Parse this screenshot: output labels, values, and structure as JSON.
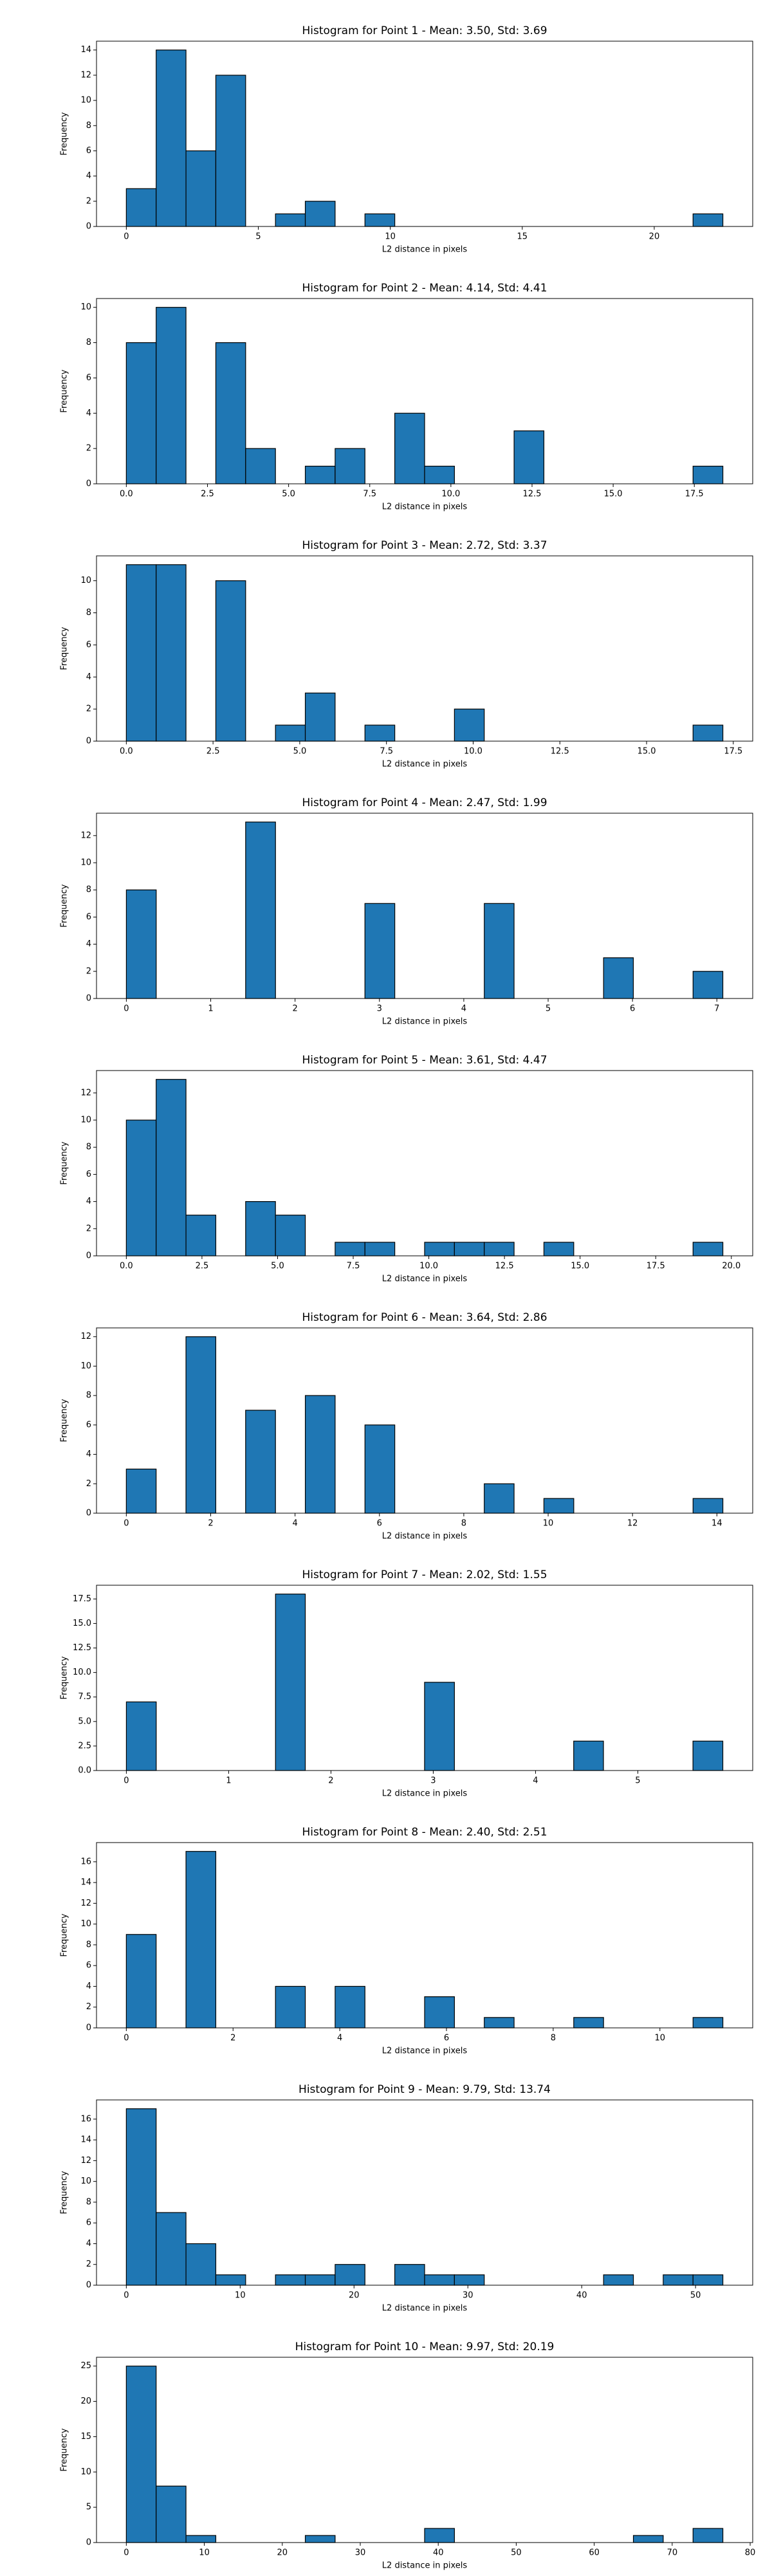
{
  "chart_data": [
    {
      "type": "histogram",
      "title": "Histogram for Point 1 - Mean: 3.50, Std: 3.69",
      "xlabel": "L2 distance in pixels",
      "ylabel": "Frequency",
      "color": "#1f77b4",
      "edgecolor": "#000000",
      "bins": [
        0,
        1.13,
        2.26,
        3.39,
        4.52,
        5.65,
        6.78,
        7.91,
        9.04,
        10.17,
        11.3,
        12.43,
        13.56,
        14.69,
        15.82,
        16.95,
        18.08,
        19.21,
        20.34,
        21.47,
        22.6
      ],
      "counts": [
        3,
        14,
        6,
        12,
        0,
        1,
        2,
        0,
        1,
        0,
        0,
        0,
        0,
        0,
        0,
        0,
        0,
        0,
        0,
        1
      ],
      "xlim": [
        -1.13,
        23.73
      ],
      "xticks": [
        0,
        5,
        10,
        15,
        20
      ],
      "ylim": [
        0,
        14.7
      ],
      "yticks": [
        0,
        2,
        4,
        6,
        8,
        10,
        12,
        14
      ]
    },
    {
      "type": "histogram",
      "title": "Histogram for Point 2 - Mean: 4.14, Std: 4.41",
      "xlabel": "L2 distance in pixels",
      "ylabel": "Frequency",
      "color": "#1f77b4",
      "edgecolor": "#000000",
      "bins": [
        0,
        0.919,
        1.838,
        2.757,
        3.676,
        4.595,
        5.514,
        6.433,
        7.352,
        8.271,
        9.19,
        10.109,
        11.028,
        11.947,
        12.866,
        13.785,
        14.704,
        15.623,
        16.542,
        17.461,
        18.38
      ],
      "counts": [
        8,
        10,
        0,
        8,
        2,
        0,
        1,
        2,
        0,
        4,
        1,
        0,
        0,
        3,
        0,
        0,
        0,
        0,
        0,
        1
      ],
      "xlim": [
        -0.919,
        19.299
      ],
      "xticks": [
        {
          "value": 0,
          "label": "0.0"
        },
        {
          "value": 2.5,
          "label": "2.5"
        },
        {
          "value": 5,
          "label": "5.0"
        },
        {
          "value": 7.5,
          "label": "7.5"
        },
        {
          "value": 10,
          "label": "10.0"
        },
        {
          "value": 12.5,
          "label": "12.5"
        },
        {
          "value": 15,
          "label": "15.0"
        },
        {
          "value": 17.5,
          "label": "17.5"
        }
      ],
      "ylim": [
        0,
        10.5
      ],
      "yticks": [
        0,
        2,
        4,
        6,
        8,
        10
      ]
    },
    {
      "type": "histogram",
      "title": "Histogram for Point 3 - Mean: 2.72, Std: 3.37",
      "xlabel": "L2 distance in pixels",
      "ylabel": "Frequency",
      "color": "#1f77b4",
      "edgecolor": "#000000",
      "bins": [
        0,
        0.86,
        1.72,
        2.58,
        3.44,
        4.3,
        5.16,
        6.02,
        6.88,
        7.74,
        8.6,
        9.46,
        10.32,
        11.18,
        12.04,
        12.9,
        13.76,
        14.62,
        15.48,
        16.34,
        17.2
      ],
      "counts": [
        11,
        11,
        0,
        10,
        0,
        1,
        3,
        0,
        1,
        0,
        0,
        2,
        0,
        0,
        0,
        0,
        0,
        0,
        0,
        1
      ],
      "xlim": [
        -0.86,
        18.06
      ],
      "xticks": [
        {
          "value": 0,
          "label": "0.0"
        },
        {
          "value": 2.5,
          "label": "2.5"
        },
        {
          "value": 5,
          "label": "5.0"
        },
        {
          "value": 7.5,
          "label": "7.5"
        },
        {
          "value": 10,
          "label": "10.0"
        },
        {
          "value": 12.5,
          "label": "12.5"
        },
        {
          "value": 15,
          "label": "15.0"
        },
        {
          "value": 17.5,
          "label": "17.5"
        }
      ],
      "ylim": [
        0,
        11.55
      ],
      "yticks": [
        0,
        2,
        4,
        6,
        8,
        10
      ]
    },
    {
      "type": "histogram",
      "title": "Histogram for Point 4 - Mean: 2.47, Std: 1.99",
      "xlabel": "L2 distance in pixels",
      "ylabel": "Frequency",
      "color": "#1f77b4",
      "edgecolor": "#000000",
      "bins": [
        0,
        0.354,
        0.707,
        1.061,
        1.414,
        1.768,
        2.121,
        2.475,
        2.828,
        3.182,
        3.536,
        3.889,
        4.243,
        4.596,
        4.95,
        5.303,
        5.657,
        6.01,
        6.364,
        6.718,
        7.071
      ],
      "counts": [
        8,
        0,
        0,
        0,
        13,
        0,
        0,
        0,
        7,
        0,
        0,
        0,
        7,
        0,
        0,
        0,
        3,
        0,
        0,
        2
      ],
      "xlim": [
        -0.354,
        7.425
      ],
      "xticks": [
        0,
        1,
        2,
        3,
        4,
        5,
        6,
        7
      ],
      "ylim": [
        0,
        13.65
      ],
      "yticks": [
        0,
        2,
        4,
        6,
        8,
        10,
        12
      ]
    },
    {
      "type": "histogram",
      "title": "Histogram for Point 5 - Mean: 3.61, Std: 4.47",
      "xlabel": "L2 distance in pixels",
      "ylabel": "Frequency",
      "color": "#1f77b4",
      "edgecolor": "#000000",
      "bins": [
        0,
        0.986,
        1.972,
        2.958,
        3.944,
        4.93,
        5.916,
        6.902,
        7.888,
        8.874,
        9.86,
        10.846,
        11.832,
        12.818,
        13.804,
        14.79,
        15.776,
        16.762,
        17.748,
        18.734,
        19.72
      ],
      "counts": [
        10,
        13,
        3,
        0,
        4,
        3,
        0,
        1,
        1,
        0,
        1,
        1,
        1,
        0,
        1,
        0,
        0,
        0,
        0,
        1
      ],
      "xlim": [
        -0.986,
        20.706
      ],
      "xticks": [
        {
          "value": 0,
          "label": "0.0"
        },
        {
          "value": 2.5,
          "label": "2.5"
        },
        {
          "value": 5,
          "label": "5.0"
        },
        {
          "value": 7.5,
          "label": "7.5"
        },
        {
          "value": 10,
          "label": "10.0"
        },
        {
          "value": 12.5,
          "label": "12.5"
        },
        {
          "value": 15,
          "label": "15.0"
        },
        {
          "value": 17.5,
          "label": "17.5"
        },
        {
          "value": 20,
          "label": "20.0"
        }
      ],
      "ylim": [
        0,
        13.65
      ],
      "yticks": [
        0,
        2,
        4,
        6,
        8,
        10,
        12
      ]
    },
    {
      "type": "histogram",
      "title": "Histogram for Point 6 - Mean: 3.64, Std: 2.86",
      "xlabel": "L2 distance in pixels",
      "ylabel": "Frequency",
      "color": "#1f77b4",
      "edgecolor": "#000000",
      "bins": [
        0,
        0.707,
        1.414,
        2.121,
        2.828,
        3.536,
        4.243,
        4.95,
        5.657,
        6.364,
        7.071,
        7.778,
        8.485,
        9.192,
        9.899,
        10.607,
        11.314,
        12.021,
        12.728,
        13.435,
        14.142
      ],
      "counts": [
        3,
        0,
        12,
        0,
        7,
        0,
        8,
        0,
        6,
        0,
        0,
        0,
        2,
        0,
        1,
        0,
        0,
        0,
        0,
        1
      ],
      "xlim": [
        -0.707,
        14.849
      ],
      "xticks": [
        0,
        2,
        4,
        6,
        8,
        10,
        12,
        14
      ],
      "ylim": [
        0,
        12.6
      ],
      "yticks": [
        0,
        2,
        4,
        6,
        8,
        10,
        12
      ]
    },
    {
      "type": "histogram",
      "title": "Histogram for Point 7 - Mean: 2.02, Std: 1.55",
      "xlabel": "L2 distance in pixels",
      "ylabel": "Frequency",
      "color": "#1f77b4",
      "edgecolor": "#000000",
      "bins": [
        0,
        0.292,
        0.583,
        0.875,
        1.166,
        1.458,
        1.749,
        2.041,
        2.332,
        2.624,
        2.915,
        3.207,
        3.498,
        3.79,
        4.081,
        4.373,
        4.664,
        4.956,
        5.247,
        5.539,
        5.831
      ],
      "counts": [
        7,
        0,
        0,
        0,
        0,
        18,
        0,
        0,
        0,
        0,
        9,
        0,
        0,
        0,
        0,
        3,
        0,
        0,
        0,
        3
      ],
      "xlim": [
        -0.292,
        6.123
      ],
      "xticks": [
        0,
        1,
        2,
        3,
        4,
        5
      ],
      "ylim": [
        0,
        18.9
      ],
      "yticks": [
        {
          "value": 0,
          "label": "0.0"
        },
        {
          "value": 2.5,
          "label": "2.5"
        },
        {
          "value": 5,
          "label": "5.0"
        },
        {
          "value": 7.5,
          "label": "7.5"
        },
        {
          "value": 10,
          "label": "10.0"
        },
        {
          "value": 12.5,
          "label": "12.5"
        },
        {
          "value": 15,
          "label": "15.0"
        },
        {
          "value": 17.5,
          "label": "17.5"
        }
      ]
    },
    {
      "type": "histogram",
      "title": "Histogram for Point 8 - Mean: 2.40, Std: 2.51",
      "xlabel": "L2 distance in pixels",
      "ylabel": "Frequency",
      "color": "#1f77b4",
      "edgecolor": "#000000",
      "bins": [
        0,
        0.559,
        1.118,
        1.677,
        2.236,
        2.795,
        3.354,
        3.913,
        4.472,
        5.031,
        5.59,
        6.149,
        6.708,
        7.267,
        7.826,
        8.385,
        8.944,
        9.503,
        10.062,
        10.621,
        11.18
      ],
      "counts": [
        9,
        0,
        17,
        0,
        0,
        4,
        0,
        4,
        0,
        0,
        3,
        0,
        1,
        0,
        0,
        1,
        0,
        0,
        0,
        1
      ],
      "xlim": [
        -0.559,
        11.739
      ],
      "xticks": [
        0,
        2,
        4,
        6,
        8,
        10
      ],
      "ylim": [
        0,
        17.85
      ],
      "yticks": [
        0,
        2,
        4,
        6,
        8,
        10,
        12,
        14,
        16
      ]
    },
    {
      "type": "histogram",
      "title": "Histogram for Point 9 - Mean: 9.79, Std: 13.74",
      "xlabel": "L2 distance in pixels",
      "ylabel": "Frequency",
      "color": "#1f77b4",
      "edgecolor": "#000000",
      "bins": [
        0,
        2.62,
        5.24,
        7.86,
        10.48,
        13.1,
        15.72,
        18.34,
        20.96,
        23.58,
        26.2,
        28.82,
        31.44,
        34.06,
        36.68,
        39.3,
        41.92,
        44.54,
        47.16,
        49.78,
        52.4
      ],
      "counts": [
        17,
        7,
        4,
        1,
        0,
        1,
        1,
        2,
        0,
        2,
        1,
        1,
        0,
        0,
        0,
        0,
        1,
        0,
        1,
        1
      ],
      "xlim": [
        -2.62,
        55.02
      ],
      "xticks": [
        0,
        10,
        20,
        30,
        40,
        50
      ],
      "ylim": [
        0,
        17.85
      ],
      "yticks": [
        0,
        2,
        4,
        6,
        8,
        10,
        12,
        14,
        16
      ]
    },
    {
      "type": "histogram",
      "title": "Histogram for Point 10 - Mean: 9.97, Std: 20.19",
      "xlabel": "L2 distance in pixels",
      "ylabel": "Frequency",
      "color": "#1f77b4",
      "edgecolor": "#000000",
      "bins": [
        0,
        3.825,
        7.65,
        11.475,
        15.3,
        19.125,
        22.95,
        26.775,
        30.6,
        34.425,
        38.25,
        42.075,
        45.9,
        49.725,
        53.55,
        57.375,
        61.2,
        65.025,
        68.85,
        72.675,
        76.5
      ],
      "counts": [
        25,
        8,
        1,
        0,
        0,
        0,
        1,
        0,
        0,
        0,
        2,
        0,
        0,
        0,
        0,
        0,
        0,
        1,
        0,
        2
      ],
      "xlim": [
        -3.825,
        80.325
      ],
      "xticks": [
        0,
        10,
        20,
        30,
        40,
        50,
        60,
        70,
        80
      ],
      "ylim": [
        0,
        26.25
      ],
      "yticks": [
        0,
        5,
        10,
        15,
        20,
        25
      ]
    }
  ]
}
